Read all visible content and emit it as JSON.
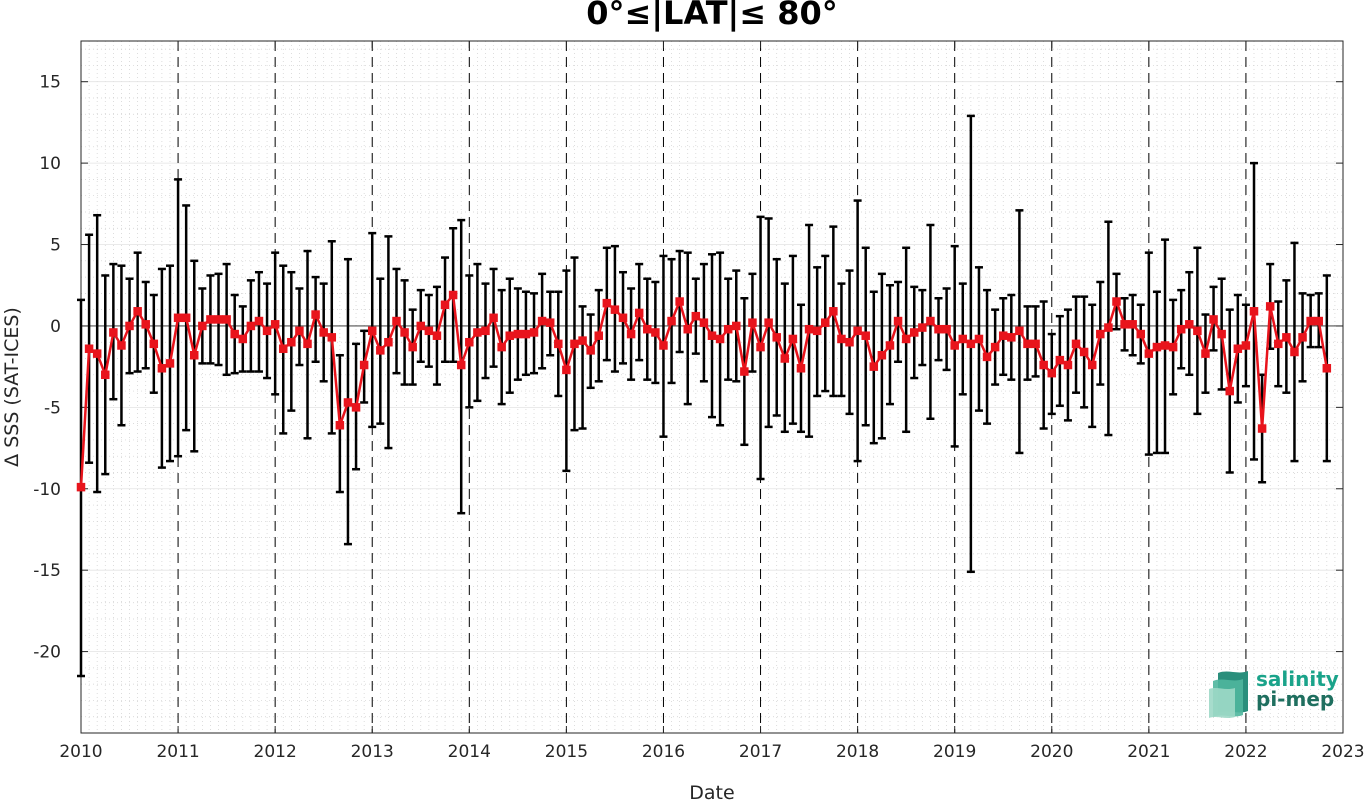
{
  "chart_data": {
    "type": "line",
    "title": "0°≤|LAT|≤ 80°",
    "xlabel": "Date",
    "ylabel": "Δ SSS (SAT-ICES)",
    "xlim": [
      "2010-01-01",
      "2023-01-01"
    ],
    "ylim": [
      -25,
      17.5
    ],
    "xtick_labels": [
      "2010",
      "2011",
      "2012",
      "2013",
      "2014",
      "2015",
      "2016",
      "2017",
      "2018",
      "2019",
      "2020",
      "2021",
      "2022",
      "2023"
    ],
    "ytick_values": [
      -20,
      -15,
      -10,
      -5,
      0,
      5,
      10,
      15
    ],
    "ytick_labels": [
      "-20",
      "-15",
      "-10",
      "-5",
      "0",
      "5",
      "10",
      "15"
    ],
    "grid": "major solid, minor dotted",
    "year_markers": "dashed vertical lines at each January",
    "series": [
      {
        "color": "#e8141c",
        "errorbar_color": "#000000",
        "marker": "square",
        "points": [
          {
            "x": "2010-01",
            "y": -9.9,
            "lo": -21.5,
            "hi": 1.6
          },
          {
            "x": "2010-02",
            "y": -1.4,
            "lo": -8.4,
            "hi": 5.6
          },
          {
            "x": "2010-03",
            "y": -1.7,
            "lo": -10.2,
            "hi": 6.8
          },
          {
            "x": "2010-04",
            "y": -3.0,
            "lo": -9.1,
            "hi": 3.1
          },
          {
            "x": "2010-05",
            "y": -0.4,
            "lo": -4.5,
            "hi": 3.8
          },
          {
            "x": "2010-06",
            "y": -1.2,
            "lo": -6.1,
            "hi": 3.7
          },
          {
            "x": "2010-07",
            "y": 0.0,
            "lo": -2.9,
            "hi": 2.9
          },
          {
            "x": "2010-08",
            "y": 0.9,
            "lo": -2.8,
            "hi": 4.5
          },
          {
            "x": "2010-09",
            "y": 0.1,
            "lo": -2.6,
            "hi": 2.7
          },
          {
            "x": "2010-10",
            "y": -1.1,
            "lo": -4.1,
            "hi": 1.9
          },
          {
            "x": "2010-11",
            "y": -2.6,
            "lo": -8.7,
            "hi": 3.5
          },
          {
            "x": "2010-12",
            "y": -2.3,
            "lo": -8.3,
            "hi": 3.7
          },
          {
            "x": "2011-01",
            "y": 0.5,
            "lo": -8.0,
            "hi": 9.0
          },
          {
            "x": "2011-02",
            "y": 0.5,
            "lo": -6.4,
            "hi": 7.4
          },
          {
            "x": "2011-03",
            "y": -1.8,
            "lo": -7.7,
            "hi": 4.0
          },
          {
            "x": "2011-04",
            "y": 0.0,
            "lo": -2.3,
            "hi": 2.3
          },
          {
            "x": "2011-05",
            "y": 0.4,
            "lo": -2.3,
            "hi": 3.1
          },
          {
            "x": "2011-06",
            "y": 0.4,
            "lo": -2.4,
            "hi": 3.2
          },
          {
            "x": "2011-07",
            "y": 0.4,
            "lo": -3.0,
            "hi": 3.8
          },
          {
            "x": "2011-08",
            "y": -0.5,
            "lo": -2.9,
            "hi": 1.9
          },
          {
            "x": "2011-09",
            "y": -0.8,
            "lo": -2.8,
            "hi": 1.2
          },
          {
            "x": "2011-10",
            "y": 0.0,
            "lo": -2.8,
            "hi": 2.8
          },
          {
            "x": "2011-11",
            "y": 0.3,
            "lo": -2.8,
            "hi": 3.3
          },
          {
            "x": "2011-12",
            "y": -0.3,
            "lo": -3.2,
            "hi": 2.6
          },
          {
            "x": "2012-01",
            "y": 0.1,
            "lo": -4.2,
            "hi": 4.5
          },
          {
            "x": "2012-02",
            "y": -1.4,
            "lo": -6.6,
            "hi": 3.7
          },
          {
            "x": "2012-03",
            "y": -1.0,
            "lo": -5.2,
            "hi": 3.3
          },
          {
            "x": "2012-04",
            "y": -0.3,
            "lo": -2.4,
            "hi": 2.3
          },
          {
            "x": "2012-05",
            "y": -1.1,
            "lo": -6.9,
            "hi": 4.6
          },
          {
            "x": "2012-06",
            "y": 0.7,
            "lo": -2.2,
            "hi": 3.0
          },
          {
            "x": "2012-07",
            "y": -0.4,
            "lo": -3.4,
            "hi": 2.6
          },
          {
            "x": "2012-08",
            "y": -0.7,
            "lo": -6.6,
            "hi": 5.2
          },
          {
            "x": "2012-09",
            "y": -6.1,
            "lo": -10.2,
            "hi": -1.8
          },
          {
            "x": "2012-10",
            "y": -4.7,
            "lo": -13.4,
            "hi": 4.1
          },
          {
            "x": "2012-11",
            "y": -5.0,
            "lo": -8.8,
            "hi": -1.1
          },
          {
            "x": "2012-12",
            "y": -2.4,
            "lo": -4.7,
            "hi": -0.3
          },
          {
            "x": "2013-01",
            "y": -0.3,
            "lo": -6.2,
            "hi": 5.7
          },
          {
            "x": "2013-02",
            "y": -1.5,
            "lo": -6.0,
            "hi": 2.9
          },
          {
            "x": "2013-03",
            "y": -1.0,
            "lo": -7.5,
            "hi": 5.5
          },
          {
            "x": "2013-04",
            "y": 0.3,
            "lo": -2.9,
            "hi": 3.5
          },
          {
            "x": "2013-05",
            "y": -0.4,
            "lo": -3.6,
            "hi": 2.8
          },
          {
            "x": "2013-06",
            "y": -1.3,
            "lo": -3.6,
            "hi": 1.0
          },
          {
            "x": "2013-07",
            "y": 0.0,
            "lo": -2.2,
            "hi": 2.2
          },
          {
            "x": "2013-08",
            "y": -0.3,
            "lo": -2.5,
            "hi": 1.9
          },
          {
            "x": "2013-09",
            "y": -0.6,
            "lo": -3.6,
            "hi": 2.4
          },
          {
            "x": "2013-10",
            "y": 1.3,
            "lo": -2.2,
            "hi": 4.2
          },
          {
            "x": "2013-11",
            "y": 1.9,
            "lo": -2.2,
            "hi": 6.0
          },
          {
            "x": "2013-12",
            "y": -2.4,
            "lo": -11.5,
            "hi": 6.5
          },
          {
            "x": "2014-01",
            "y": -1.0,
            "lo": -5.0,
            "hi": 3.1
          },
          {
            "x": "2014-02",
            "y": -0.4,
            "lo": -4.6,
            "hi": 3.8
          },
          {
            "x": "2014-03",
            "y": -0.3,
            "lo": -3.2,
            "hi": 2.6
          },
          {
            "x": "2014-04",
            "y": 0.5,
            "lo": -2.5,
            "hi": 3.5
          },
          {
            "x": "2014-05",
            "y": -1.3,
            "lo": -4.8,
            "hi": 2.2
          },
          {
            "x": "2014-06",
            "y": -0.6,
            "lo": -4.1,
            "hi": 2.9
          },
          {
            "x": "2014-07",
            "y": -0.5,
            "lo": -3.3,
            "hi": 2.3
          },
          {
            "x": "2014-08",
            "y": -0.5,
            "lo": -3.0,
            "hi": 2.1
          },
          {
            "x": "2014-09",
            "y": -0.4,
            "lo": -2.9,
            "hi": 2.0
          },
          {
            "x": "2014-10",
            "y": 0.3,
            "lo": -2.6,
            "hi": 3.2
          },
          {
            "x": "2014-11",
            "y": 0.2,
            "lo": -1.8,
            "hi": 2.1
          },
          {
            "x": "2014-12",
            "y": -1.1,
            "lo": -4.3,
            "hi": 2.1
          },
          {
            "x": "2015-01",
            "y": -2.7,
            "lo": -8.9,
            "hi": 3.4
          },
          {
            "x": "2015-02",
            "y": -1.1,
            "lo": -6.4,
            "hi": 4.2
          },
          {
            "x": "2015-03",
            "y": -0.9,
            "lo": -6.3,
            "hi": 1.2
          },
          {
            "x": "2015-04",
            "y": -1.5,
            "lo": -3.8,
            "hi": 0.7
          },
          {
            "x": "2015-05",
            "y": -0.6,
            "lo": -3.4,
            "hi": 2.2
          },
          {
            "x": "2015-06",
            "y": 1.4,
            "lo": -2.1,
            "hi": 4.8
          },
          {
            "x": "2015-07",
            "y": 1.0,
            "lo": -2.8,
            "hi": 4.9
          },
          {
            "x": "2015-08",
            "y": 0.5,
            "lo": -2.3,
            "hi": 3.3
          },
          {
            "x": "2015-09",
            "y": -0.5,
            "lo": -3.3,
            "hi": 2.3
          },
          {
            "x": "2015-10",
            "y": 0.8,
            "lo": -2.1,
            "hi": 3.8
          },
          {
            "x": "2015-11",
            "y": -0.2,
            "lo": -3.3,
            "hi": 2.9
          },
          {
            "x": "2015-12",
            "y": -0.4,
            "lo": -3.5,
            "hi": 2.7
          },
          {
            "x": "2016-01",
            "y": -1.2,
            "lo": -6.8,
            "hi": 4.3
          },
          {
            "x": "2016-02",
            "y": 0.3,
            "lo": -3.5,
            "hi": 4.1
          },
          {
            "x": "2016-03",
            "y": 1.5,
            "lo": -1.6,
            "hi": 4.6
          },
          {
            "x": "2016-04",
            "y": -0.2,
            "lo": -4.8,
            "hi": 4.5
          },
          {
            "x": "2016-05",
            "y": 0.6,
            "lo": -1.7,
            "hi": 2.9
          },
          {
            "x": "2016-06",
            "y": 0.2,
            "lo": -3.4,
            "hi": 3.8
          },
          {
            "x": "2016-07",
            "y": -0.6,
            "lo": -5.6,
            "hi": 4.4
          },
          {
            "x": "2016-08",
            "y": -0.8,
            "lo": -6.1,
            "hi": 4.5
          },
          {
            "x": "2016-09",
            "y": -0.2,
            "lo": -3.3,
            "hi": 2.9
          },
          {
            "x": "2016-10",
            "y": 0.0,
            "lo": -3.4,
            "hi": 3.4
          },
          {
            "x": "2016-11",
            "y": -2.8,
            "lo": -7.3,
            "hi": 1.7
          },
          {
            "x": "2016-12",
            "y": 0.2,
            "lo": -2.8,
            "hi": 3.2
          },
          {
            "x": "2017-01",
            "y": -1.3,
            "lo": -9.4,
            "hi": 6.7
          },
          {
            "x": "2017-02",
            "y": 0.2,
            "lo": -6.2,
            "hi": 6.6
          },
          {
            "x": "2017-03",
            "y": -0.7,
            "lo": -5.5,
            "hi": 4.1
          },
          {
            "x": "2017-04",
            "y": -2.0,
            "lo": -6.5,
            "hi": 2.6
          },
          {
            "x": "2017-05",
            "y": -0.8,
            "lo": -6.0,
            "hi": 4.3
          },
          {
            "x": "2017-06",
            "y": -2.6,
            "lo": -6.5,
            "hi": 1.3
          },
          {
            "x": "2017-07",
            "y": -0.2,
            "lo": -6.8,
            "hi": 6.2
          },
          {
            "x": "2017-08",
            "y": -0.3,
            "lo": -4.3,
            "hi": 3.6
          },
          {
            "x": "2017-09",
            "y": 0.2,
            "lo": -4.0,
            "hi": 4.3
          },
          {
            "x": "2017-10",
            "y": 0.9,
            "lo": -4.3,
            "hi": 6.1
          },
          {
            "x": "2017-11",
            "y": -0.8,
            "lo": -4.3,
            "hi": 2.6
          },
          {
            "x": "2017-12",
            "y": -1.0,
            "lo": -5.4,
            "hi": 3.4
          },
          {
            "x": "2018-01",
            "y": -0.3,
            "lo": -8.3,
            "hi": 7.7
          },
          {
            "x": "2018-02",
            "y": -0.6,
            "lo": -6.1,
            "hi": 4.8
          },
          {
            "x": "2018-03",
            "y": -2.5,
            "lo": -7.2,
            "hi": 2.1
          },
          {
            "x": "2018-04",
            "y": -1.8,
            "lo": -6.9,
            "hi": 3.2
          },
          {
            "x": "2018-05",
            "y": -1.2,
            "lo": -4.8,
            "hi": 2.5
          },
          {
            "x": "2018-06",
            "y": 0.3,
            "lo": -2.2,
            "hi": 2.7
          },
          {
            "x": "2018-07",
            "y": -0.8,
            "lo": -6.5,
            "hi": 4.8
          },
          {
            "x": "2018-08",
            "y": -0.4,
            "lo": -3.2,
            "hi": 2.4
          },
          {
            "x": "2018-09",
            "y": -0.1,
            "lo": -2.4,
            "hi": 2.2
          },
          {
            "x": "2018-10",
            "y": 0.3,
            "lo": -5.7,
            "hi": 6.2
          },
          {
            "x": "2018-11",
            "y": -0.2,
            "lo": -2.1,
            "hi": 1.7
          },
          {
            "x": "2018-12",
            "y": -0.2,
            "lo": -2.7,
            "hi": 2.3
          },
          {
            "x": "2019-01",
            "y": -1.2,
            "lo": -7.4,
            "hi": 4.9
          },
          {
            "x": "2019-02",
            "y": -0.8,
            "lo": -4.2,
            "hi": 2.6
          },
          {
            "x": "2019-03",
            "y": -1.1,
            "lo": -15.1,
            "hi": 12.9
          },
          {
            "x": "2019-04",
            "y": -0.8,
            "lo": -5.2,
            "hi": 3.6
          },
          {
            "x": "2019-05",
            "y": -1.9,
            "lo": -6.0,
            "hi": 2.2
          },
          {
            "x": "2019-06",
            "y": -1.3,
            "lo": -3.6,
            "hi": 1.0
          },
          {
            "x": "2019-07",
            "y": -0.6,
            "lo": -3.0,
            "hi": 1.7
          },
          {
            "x": "2019-08",
            "y": -0.7,
            "lo": -3.3,
            "hi": 1.9
          },
          {
            "x": "2019-09",
            "y": -0.3,
            "lo": -7.8,
            "hi": 7.1
          },
          {
            "x": "2019-10",
            "y": -1.1,
            "lo": -3.3,
            "hi": 1.2
          },
          {
            "x": "2019-11",
            "y": -1.1,
            "lo": -3.1,
            "hi": 1.2
          },
          {
            "x": "2019-12",
            "y": -2.4,
            "lo": -6.3,
            "hi": 1.5
          },
          {
            "x": "2020-01",
            "y": -2.9,
            "lo": -5.4,
            "hi": -0.5
          },
          {
            "x": "2020-02",
            "y": -2.1,
            "lo": -4.9,
            "hi": 0.6
          },
          {
            "x": "2020-03",
            "y": -2.4,
            "lo": -5.8,
            "hi": 1.0
          },
          {
            "x": "2020-04",
            "y": -1.1,
            "lo": -4.1,
            "hi": 1.8
          },
          {
            "x": "2020-05",
            "y": -1.6,
            "lo": -5.0,
            "hi": 1.8
          },
          {
            "x": "2020-06",
            "y": -2.4,
            "lo": -6.2,
            "hi": 1.3
          },
          {
            "x": "2020-07",
            "y": -0.5,
            "lo": -3.6,
            "hi": 2.7
          },
          {
            "x": "2020-08",
            "y": -0.1,
            "lo": -6.7,
            "hi": 6.4
          },
          {
            "x": "2020-09",
            "y": 1.5,
            "lo": -0.2,
            "hi": 3.2
          },
          {
            "x": "2020-10",
            "y": 0.1,
            "lo": -1.5,
            "hi": 1.7
          },
          {
            "x": "2020-11",
            "y": 0.1,
            "lo": -1.8,
            "hi": 1.9
          },
          {
            "x": "2020-12",
            "y": -0.5,
            "lo": -2.3,
            "hi": 1.3
          },
          {
            "x": "2021-01",
            "y": -1.7,
            "lo": -7.9,
            "hi": 4.5
          },
          {
            "x": "2021-02",
            "y": -1.3,
            "lo": -7.8,
            "hi": 2.1
          },
          {
            "x": "2021-03",
            "y": -1.2,
            "lo": -7.8,
            "hi": 5.3
          },
          {
            "x": "2021-04",
            "y": -1.3,
            "lo": -4.2,
            "hi": 1.6
          },
          {
            "x": "2021-05",
            "y": -0.2,
            "lo": -2.6,
            "hi": 2.2
          },
          {
            "x": "2021-06",
            "y": 0.1,
            "lo": -3.0,
            "hi": 3.3
          },
          {
            "x": "2021-07",
            "y": -0.3,
            "lo": -5.4,
            "hi": 4.8
          },
          {
            "x": "2021-08",
            "y": -1.7,
            "lo": -4.1,
            "hi": 0.7
          },
          {
            "x": "2021-09",
            "y": 0.4,
            "lo": -1.5,
            "hi": 2.4
          },
          {
            "x": "2021-10",
            "y": -0.5,
            "lo": -3.9,
            "hi": 2.9
          },
          {
            "x": "2021-11",
            "y": -4.0,
            "lo": -9.0,
            "hi": 1.0
          },
          {
            "x": "2021-12",
            "y": -1.4,
            "lo": -4.7,
            "hi": 1.9
          },
          {
            "x": "2022-01",
            "y": -1.2,
            "lo": -3.7,
            "hi": 1.3
          },
          {
            "x": "2022-02",
            "y": 0.9,
            "lo": -8.2,
            "hi": 10.0
          },
          {
            "x": "2022-03",
            "y": -6.3,
            "lo": -9.6,
            "hi": -3.0
          },
          {
            "x": "2022-04",
            "y": 1.2,
            "lo": -1.4,
            "hi": 3.8
          },
          {
            "x": "2022-05",
            "y": -1.1,
            "lo": -3.7,
            "hi": 1.5
          },
          {
            "x": "2022-06",
            "y": -0.7,
            "lo": -4.1,
            "hi": 2.8
          },
          {
            "x": "2022-07",
            "y": -1.6,
            "lo": -8.3,
            "hi": 5.1
          },
          {
            "x": "2022-08",
            "y": -0.7,
            "lo": -3.4,
            "hi": 2.0
          },
          {
            "x": "2022-09",
            "y": 0.3,
            "lo": -1.3,
            "hi": 1.9
          },
          {
            "x": "2022-10",
            "y": 0.3,
            "lo": -1.3,
            "hi": 2.0
          },
          {
            "x": "2022-11",
            "y": -2.6,
            "lo": -8.3,
            "hi": 3.1
          }
        ]
      }
    ]
  },
  "logo": {
    "text_top": "salinity",
    "text_bottom": "pi-mep",
    "color_top": "#1aa38a",
    "color_bottom": "#1f6f5f"
  }
}
